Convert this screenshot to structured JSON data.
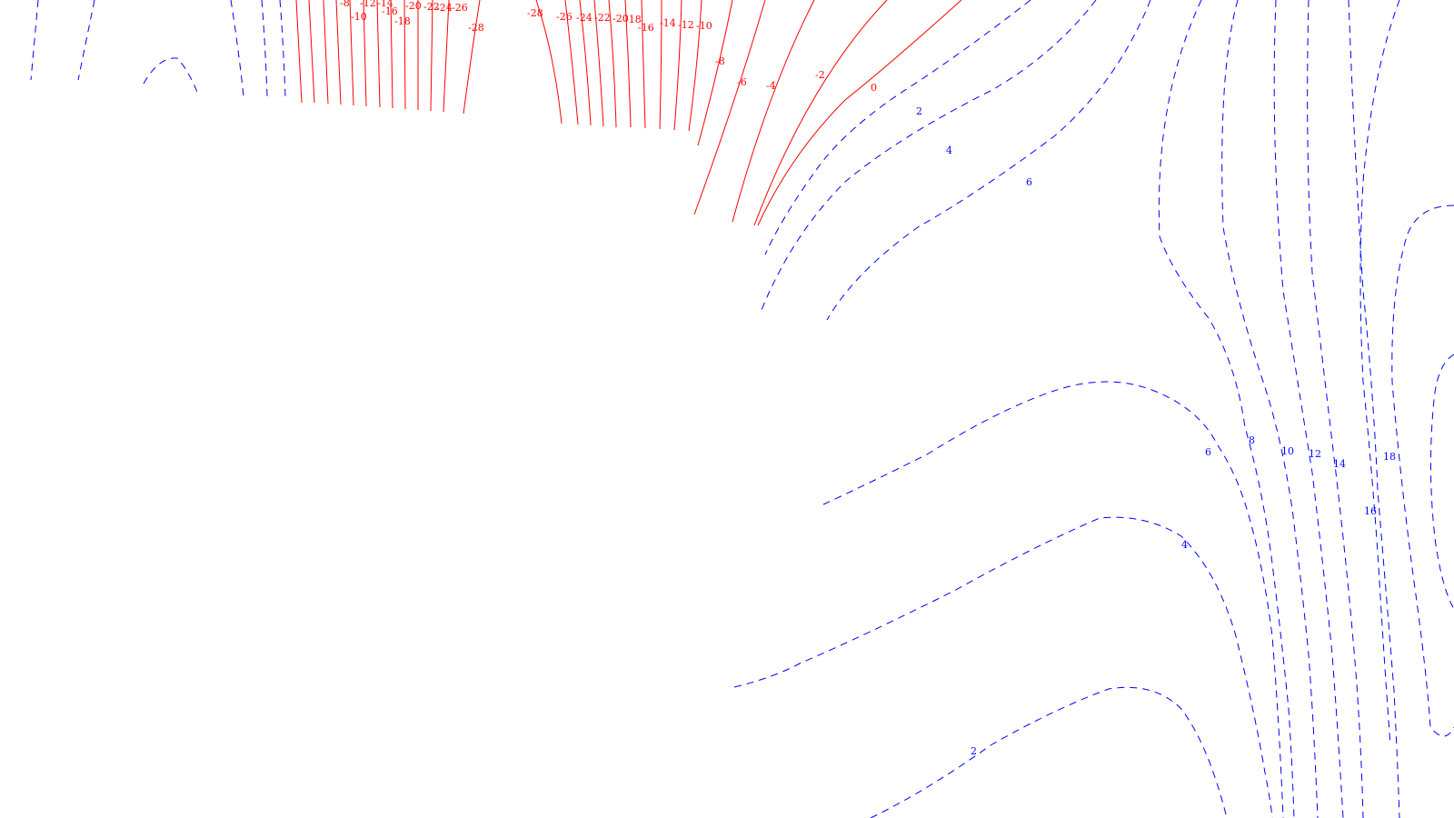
{
  "colors": {
    "background": "#ffffff",
    "negative_contour": "#ff0000",
    "positive_contour": "#0000ff"
  },
  "contour_plot": {
    "negative_line_style": "solid",
    "positive_line_style": "dashed",
    "labels": {
      "neg_top_left": [
        "-8",
        "-12",
        "-14",
        "-20",
        "-22",
        "-24",
        "-26"
      ],
      "neg_left_lower": [
        "-10",
        "-16",
        "-18",
        "-28"
      ],
      "neg_top_mid": [
        "-28",
        "-26",
        "-24",
        "-22",
        "-20",
        "-18",
        "-16",
        "-14",
        "-12",
        "-10"
      ],
      "neg_diag": [
        "-8",
        "-6",
        "-4",
        "-2",
        "0"
      ],
      "pos_diag": [
        "2",
        "4",
        "6"
      ],
      "pos_right_upper": [
        "8",
        "10",
        "12",
        "14",
        "18"
      ],
      "pos_right_lower": [
        "6",
        "16",
        "4",
        "2"
      ]
    }
  }
}
